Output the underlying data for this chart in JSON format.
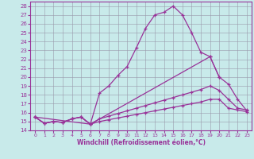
{
  "xlabel": "Windchill (Refroidissement éolien,°C)",
  "xlim": [
    -0.5,
    23.5
  ],
  "ylim": [
    14,
    28.5
  ],
  "xticks": [
    0,
    1,
    2,
    3,
    4,
    5,
    6,
    7,
    8,
    9,
    10,
    11,
    12,
    13,
    14,
    15,
    16,
    17,
    18,
    19,
    20,
    21,
    22,
    23
  ],
  "yticks": [
    14,
    15,
    16,
    17,
    18,
    19,
    20,
    21,
    22,
    23,
    24,
    25,
    26,
    27,
    28
  ],
  "bg_color": "#c8eaea",
  "line_color": "#993399",
  "grid_color": "#9999aa",
  "line1_x": [
    0,
    1,
    2,
    3,
    4,
    5,
    6,
    7,
    8,
    9,
    10,
    11,
    12,
    13,
    14,
    15,
    16,
    17,
    18,
    19,
    20,
    21,
    22,
    23
  ],
  "line1_y": [
    15.5,
    14.8,
    15.0,
    14.9,
    15.3,
    15.5,
    14.7,
    18.2,
    19.0,
    20.2,
    21.2,
    23.3,
    25.5,
    27.0,
    27.3,
    28.0,
    27.0,
    25.0,
    22.8,
    22.3,
    20.0,
    null,
    null,
    null
  ],
  "line2_x": [
    0,
    1,
    2,
    3,
    4,
    5,
    6,
    7,
    8,
    9,
    10,
    11,
    12,
    13,
    14,
    15,
    16,
    17,
    18,
    19,
    20,
    21,
    22,
    23
  ],
  "line2_y": [
    15.5,
    14.8,
    15.0,
    14.9,
    15.3,
    15.5,
    14.7,
    15.3,
    15.6,
    15.9,
    16.2,
    16.5,
    16.8,
    17.1,
    17.4,
    17.7,
    18.0,
    18.3,
    18.6,
    19.0,
    18.5,
    17.5,
    16.5,
    16.3
  ],
  "line3_x": [
    0,
    1,
    2,
    3,
    4,
    5,
    6,
    7,
    8,
    9,
    10,
    11,
    12,
    13,
    14,
    15,
    16,
    17,
    18,
    19,
    20,
    21,
    22,
    23
  ],
  "line3_y": [
    15.5,
    14.8,
    15.0,
    14.9,
    15.3,
    15.5,
    14.7,
    15.0,
    15.2,
    15.4,
    15.6,
    15.8,
    16.0,
    16.2,
    16.4,
    16.6,
    16.8,
    17.0,
    17.2,
    17.5,
    17.5,
    16.5,
    16.3,
    16.1
  ],
  "line4_x": [
    0,
    6,
    19,
    20,
    21,
    22,
    23
  ],
  "line4_y": [
    15.5,
    14.7,
    22.3,
    20.0,
    19.2,
    17.5,
    16.2
  ]
}
